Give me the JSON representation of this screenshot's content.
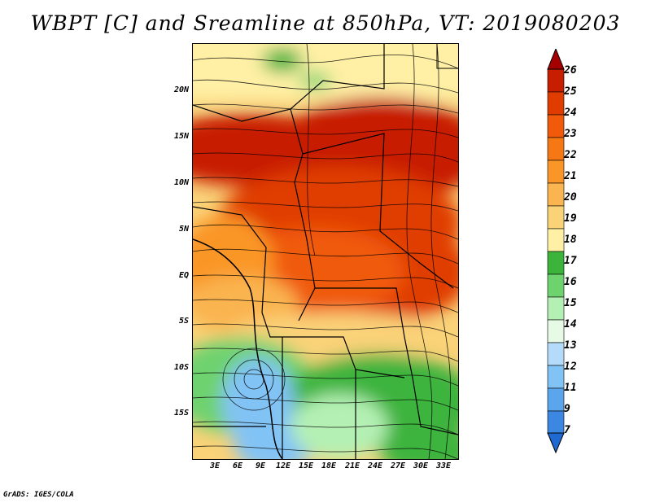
{
  "title": "WBPT [C] and Sreamline at 850hPa, VT: 2019080203",
  "footer": "GrADS: IGES/COLA",
  "y_axis_labels": [
    "20N",
    "15N",
    "10N",
    "5N",
    "EQ",
    "5S",
    "10S",
    "15S"
  ],
  "x_axis_labels": [
    "3E",
    "6E",
    "9E",
    "12E",
    "15E",
    "18E",
    "21E",
    "24E",
    "27E",
    "30E",
    "33E"
  ],
  "colorbar": {
    "labels": [
      "26",
      "25",
      "24",
      "23",
      "22",
      "21",
      "20",
      "19",
      "18",
      "17",
      "16",
      "15",
      "14",
      "13",
      "12",
      "11",
      "9",
      "7"
    ],
    "colors": [
      "#a50000",
      "#c81e00",
      "#e03c00",
      "#f05a0a",
      "#f57814",
      "#fa9628",
      "#fab450",
      "#fad278",
      "#fff0a5",
      "#3cb43c",
      "#6ed26e",
      "#b4f0b4",
      "#e6fae6",
      "#b4dcfa",
      "#82c3f5",
      "#5aa5eb",
      "#3c87e1",
      "#1e69d2"
    ]
  },
  "colors": {
    "hot": "#c81e00",
    "warm": "#f05a0a",
    "mild": "#fab450",
    "cool": "#fad278",
    "green": "#3cb43c",
    "lightgreen": "#b4f0b4",
    "blue": "#82c3f5"
  }
}
